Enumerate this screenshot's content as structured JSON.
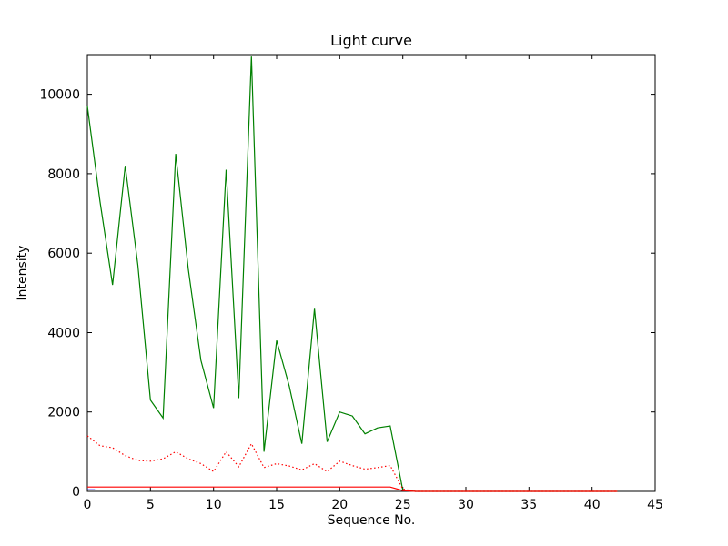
{
  "chart_data": {
    "type": "line",
    "title": "Light curve",
    "xlabel": "Sequence No.",
    "ylabel": "Intensity",
    "xlim": [
      0,
      45
    ],
    "ylim": [
      0,
      11000
    ],
    "xticks": [
      0,
      5,
      10,
      15,
      20,
      25,
      30,
      35,
      40,
      45
    ],
    "yticks": [
      0,
      2000,
      4000,
      6000,
      8000,
      10000
    ],
    "grid": false,
    "legend": "none",
    "series": [
      {
        "name": "green-solid-line",
        "color": "#008000",
        "style": "solid",
        "x": [
          0,
          1,
          2,
          3,
          4,
          5,
          6,
          7,
          8,
          9,
          10,
          11,
          12,
          13,
          14,
          15,
          16,
          17,
          18,
          19,
          20,
          21,
          22,
          23,
          24,
          25,
          26,
          27,
          28,
          29,
          30,
          31,
          32,
          33,
          34,
          35,
          36,
          37,
          38,
          39,
          40,
          41,
          42
        ],
        "y": [
          9700,
          7300,
          5200,
          8200,
          5700,
          2300,
          1850,
          8500,
          5600,
          3300,
          2100,
          8100,
          2350,
          10950,
          1000,
          3800,
          2650,
          1200,
          4600,
          1250,
          2000,
          1900,
          1450,
          1600,
          1650,
          30,
          0,
          0,
          0,
          0,
          0,
          0,
          0,
          0,
          0,
          0,
          0,
          0,
          0,
          0,
          0,
          0,
          0
        ]
      },
      {
        "name": "red-dotted-line",
        "color": "#ff0000",
        "style": "dotted",
        "x": [
          0,
          1,
          2,
          3,
          4,
          5,
          6,
          7,
          8,
          9,
          10,
          11,
          12,
          13,
          14,
          15,
          16,
          17,
          18,
          19,
          20,
          21,
          22,
          23,
          24,
          25,
          26,
          27,
          28,
          29,
          30,
          31,
          32,
          33,
          34,
          35,
          36,
          37,
          38,
          39,
          40,
          41,
          42
        ],
        "y": [
          1400,
          1150,
          1100,
          900,
          780,
          760,
          820,
          1000,
          820,
          700,
          500,
          1000,
          620,
          1200,
          600,
          700,
          640,
          540,
          700,
          500,
          760,
          650,
          560,
          600,
          650,
          60,
          0,
          0,
          0,
          0,
          0,
          0,
          0,
          0,
          0,
          0,
          0,
          0,
          0,
          0,
          0,
          0,
          0
        ]
      },
      {
        "name": "red-solid-line",
        "color": "#ff0000",
        "style": "solid",
        "x": [
          0,
          1,
          2,
          3,
          4,
          5,
          6,
          7,
          8,
          9,
          10,
          11,
          12,
          13,
          14,
          15,
          16,
          17,
          18,
          19,
          20,
          21,
          22,
          23,
          24,
          25,
          26,
          27,
          28,
          29,
          30,
          31,
          32,
          33,
          34,
          35,
          36,
          37,
          38,
          39,
          40,
          41,
          42
        ],
        "y": [
          110,
          110,
          110,
          110,
          110,
          110,
          110,
          110,
          110,
          110,
          110,
          110,
          110,
          110,
          110,
          110,
          110,
          110,
          110,
          110,
          110,
          110,
          110,
          110,
          110,
          20,
          0,
          0,
          0,
          0,
          0,
          0,
          0,
          0,
          0,
          0,
          0,
          0,
          0,
          0,
          0,
          0,
          0
        ]
      },
      {
        "name": "blue-marker",
        "color": "#0000ff",
        "style": "solid",
        "x": [
          0,
          0.6
        ],
        "y": [
          40,
          40
        ]
      }
    ]
  }
}
